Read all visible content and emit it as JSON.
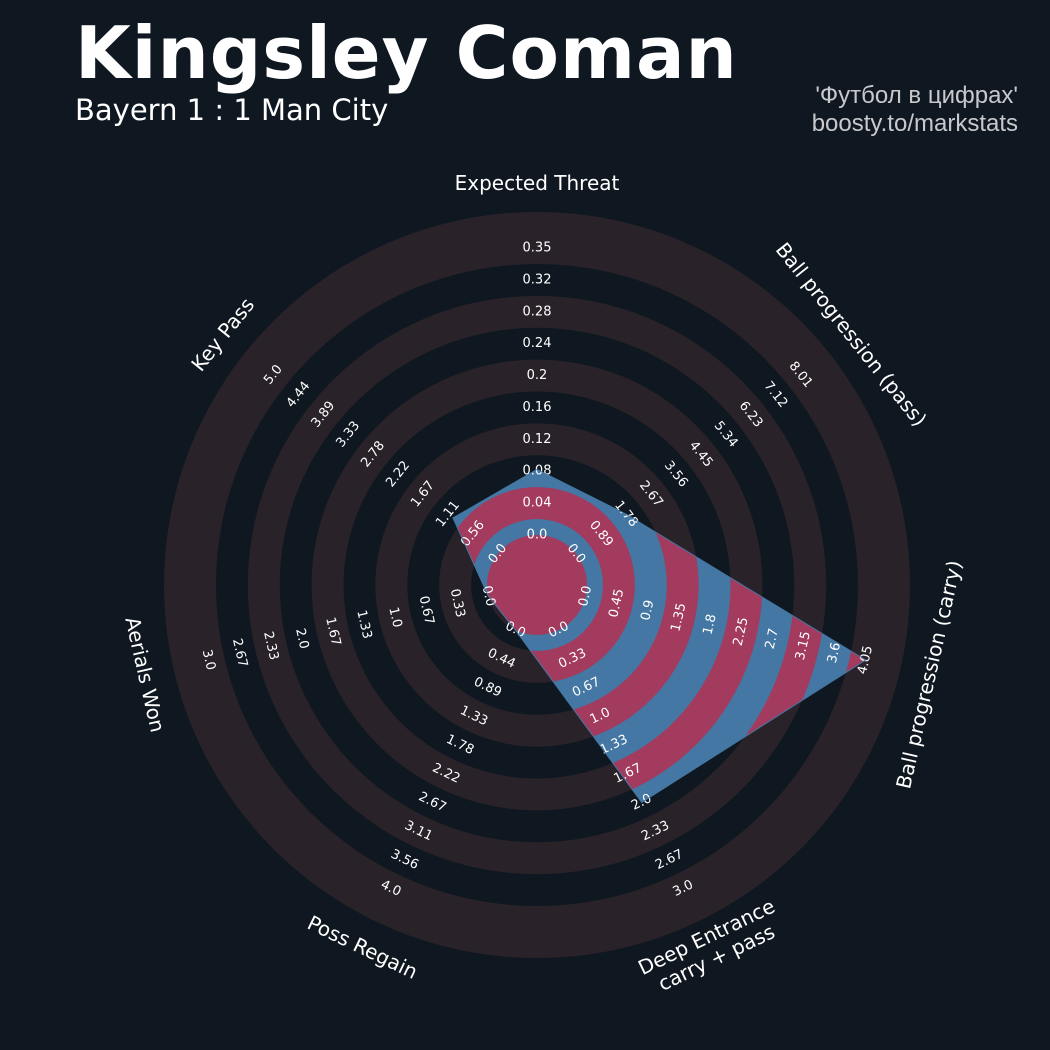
{
  "header": {
    "title": "Kingsley Coman",
    "subtitle": "Bayern 1 : 1 Man City",
    "credit_line1": "'Футбол в цифрах'",
    "credit_line2": "boosty.to/markstats"
  },
  "colors": {
    "background": "#0f1820",
    "ring": "#2a2229",
    "fill_blue": "#4477a3",
    "fill_red": "#a23b5e",
    "text": "#ffffff"
  },
  "chart_data": {
    "type": "radar",
    "title": "Kingsley Coman",
    "subtitle": "Bayern 1 : 1 Man City",
    "axes": [
      {
        "label": "Expected Threat",
        "ticks": [
          "0.0",
          "0.04",
          "0.08",
          "0.12",
          "0.16",
          "0.2",
          "0.24",
          "0.28",
          "0.32",
          "0.35"
        ],
        "value": 0.08
      },
      {
        "label": "Ball progression (pass)",
        "ticks": [
          "0.0",
          "0.89",
          "1.78",
          "2.67",
          "3.56",
          "4.45",
          "5.34",
          "6.23",
          "7.12",
          "8.01"
        ],
        "value": 1.78
      },
      {
        "label": "Ball progression (carry)",
        "ticks": [
          "0.0",
          "0.45",
          "0.9",
          "1.35",
          "1.8",
          "2.25",
          "2.7",
          "3.15",
          "3.6",
          "4.05"
        ],
        "value": 4.05
      },
      {
        "label": "Deep Entrance\ncarry + pass",
        "ticks": [
          "0.0",
          "0.33",
          "0.67",
          "1.0",
          "1.33",
          "1.67",
          "2.0",
          "2.33",
          "2.67",
          "3.0"
        ],
        "value": 2.0
      },
      {
        "label": "Poss Regain",
        "ticks": [
          "0.0",
          "0.44",
          "0.89",
          "1.33",
          "1.78",
          "2.22",
          "2.67",
          "3.11",
          "3.56",
          "4.0"
        ],
        "value": 0.0
      },
      {
        "label": "Aerials Won",
        "ticks": [
          "0.0",
          "0.33",
          "0.67",
          "1.0",
          "1.33",
          "1.67",
          "2.0",
          "2.33",
          "2.67",
          "3.0"
        ],
        "value": 0.0
      },
      {
        "label": "Key Pass",
        "ticks": [
          "0.0",
          "0.56",
          "1.11",
          "1.67",
          "2.22",
          "2.78",
          "3.33",
          "3.89",
          "4.44",
          "5.0"
        ],
        "value": 1.0
      }
    ]
  }
}
